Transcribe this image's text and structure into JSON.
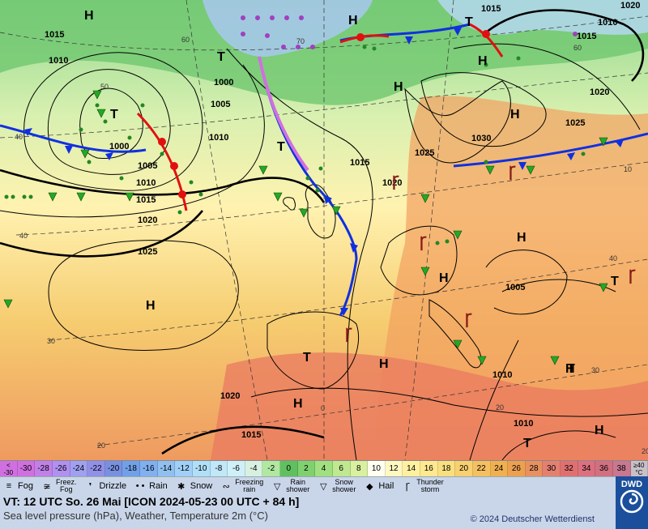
{
  "map": {
    "pressure_labels": [
      {
        "text": "1015",
        "kind": "isobar"
      },
      {
        "text": "1010",
        "kind": "isobar"
      },
      {
        "text": "1000",
        "kind": "isobar"
      },
      {
        "text": "1005",
        "kind": "isobar"
      },
      {
        "text": "1000",
        "kind": "isobar"
      },
      {
        "text": "1005",
        "kind": "isobar"
      },
      {
        "text": "1010",
        "kind": "isobar"
      },
      {
        "text": "1015",
        "kind": "isobar"
      },
      {
        "text": "1020",
        "kind": "isobar"
      },
      {
        "text": "1025",
        "kind": "isobar"
      },
      {
        "text": "1010",
        "kind": "isobar"
      },
      {
        "text": "1015",
        "kind": "isobar"
      },
      {
        "text": "1020",
        "kind": "isobar"
      },
      {
        "text": "1025",
        "kind": "isobar"
      },
      {
        "text": "1030",
        "kind": "isobar"
      },
      {
        "text": "1025",
        "kind": "isobar"
      },
      {
        "text": "1020",
        "kind": "isobar"
      },
      {
        "text": "1015",
        "kind": "isobar"
      },
      {
        "text": "1010",
        "kind": "isobar"
      },
      {
        "text": "1020",
        "kind": "isobar"
      },
      {
        "text": "1015",
        "kind": "isobar"
      },
      {
        "text": "1005",
        "kind": "isobar"
      },
      {
        "text": "1010",
        "kind": "isobar"
      },
      {
        "text": "1015",
        "kind": "isobar"
      },
      {
        "text": "1020",
        "kind": "isobar"
      },
      {
        "text": "1010",
        "kind": "isobar"
      }
    ],
    "centers": [
      "H",
      "H",
      "H",
      "H",
      "H",
      "H",
      "H",
      "H",
      "H",
      "H",
      "H",
      "H",
      "T",
      "T",
      "T",
      "T",
      "T",
      "T",
      "T",
      "T"
    ],
    "grid_labels": [
      "60",
      "70",
      "50",
      "40",
      "30",
      "20",
      "0",
      "60",
      "40",
      "10",
      "20",
      "40",
      "30",
      "20"
    ],
    "front_colors": {
      "cold": "#1030e0",
      "warm": "#e01010",
      "occluded": "#d070e0"
    },
    "temperature_colors": [
      "#a0c0f0",
      "#a8e0a0",
      "#c8f0a0",
      "#fff8c0",
      "#f8e090",
      "#f5c070",
      "#f0a060",
      "#e88070",
      "#d86080"
    ]
  },
  "scale": {
    "end_left": "<\n-30",
    "values": [
      "-30",
      "-28",
      "-26",
      "-24",
      "-22",
      "-20",
      "-18",
      "-16",
      "-14",
      "-12",
      "-10",
      "-8",
      "-6",
      "-4",
      "-2",
      "0",
      "2",
      "4",
      "6",
      "8",
      "10",
      "12",
      "14",
      "16",
      "18",
      "20",
      "22",
      "24",
      "26",
      "28",
      "30",
      "32",
      "34",
      "36",
      "38"
    ],
    "colors": [
      "#d070e0",
      "#c080e8",
      "#b090f0",
      "#a0a0f0",
      "#9090e8",
      "#7890e0",
      "#70a0e8",
      "#80b0f0",
      "#90c0f0",
      "#a0d0f8",
      "#b0e0f8",
      "#c0e8f8",
      "#d0f0f8",
      "#d8f0e0",
      "#b0e8a0",
      "#60c060",
      "#80d070",
      "#a0e080",
      "#c0e890",
      "#d8f0a0",
      "#fffff0",
      "#fff8c0",
      "#fff0a0",
      "#ffe890",
      "#f8e080",
      "#f8d070",
      "#f5c060",
      "#f0b050",
      "#eda050",
      "#e89060",
      "#e48070",
      "#e07070",
      "#dc7080",
      "#d07080",
      "#c87890"
    ],
    "end_right": "≥40\n°C"
  },
  "legend": {
    "items": [
      {
        "label": "Fog",
        "icon": "fog-icon",
        "sym": "≡"
      },
      {
        "label": "Freez.\nFog",
        "icon": "freezing-fog-icon",
        "sym": "≆"
      },
      {
        "label": "Drizzle",
        "icon": "drizzle-icon",
        "sym": "❜"
      },
      {
        "label": "Rain",
        "icon": "rain-icon",
        "sym": "• •"
      },
      {
        "label": "Snow",
        "icon": "snow-icon",
        "sym": "✱"
      },
      {
        "label": "Freezing\nrain",
        "icon": "freezing-rain-icon",
        "sym": "∾"
      },
      {
        "label": "Rain\nshower",
        "icon": "rain-shower-icon",
        "sym": "▽"
      },
      {
        "label": "Snow\nshower",
        "icon": "snow-shower-icon",
        "sym": "▽"
      },
      {
        "label": "Hail",
        "icon": "hail-icon",
        "sym": "◆"
      },
      {
        "label": "Thunder\nstorm",
        "icon": "thunderstorm-icon",
        "sym": "Ꞅ"
      }
    ]
  },
  "footer": {
    "vt": "VT: 12 UTC So.  26 Mai [ICON 2024-05-23  00 UTC + 84 h]",
    "description": "Sea level pressure (hPa), Weather, Temperature 2m (°C)",
    "copyright": "© 2024 Deutscher Wetterdienst",
    "logo": "DWD"
  }
}
